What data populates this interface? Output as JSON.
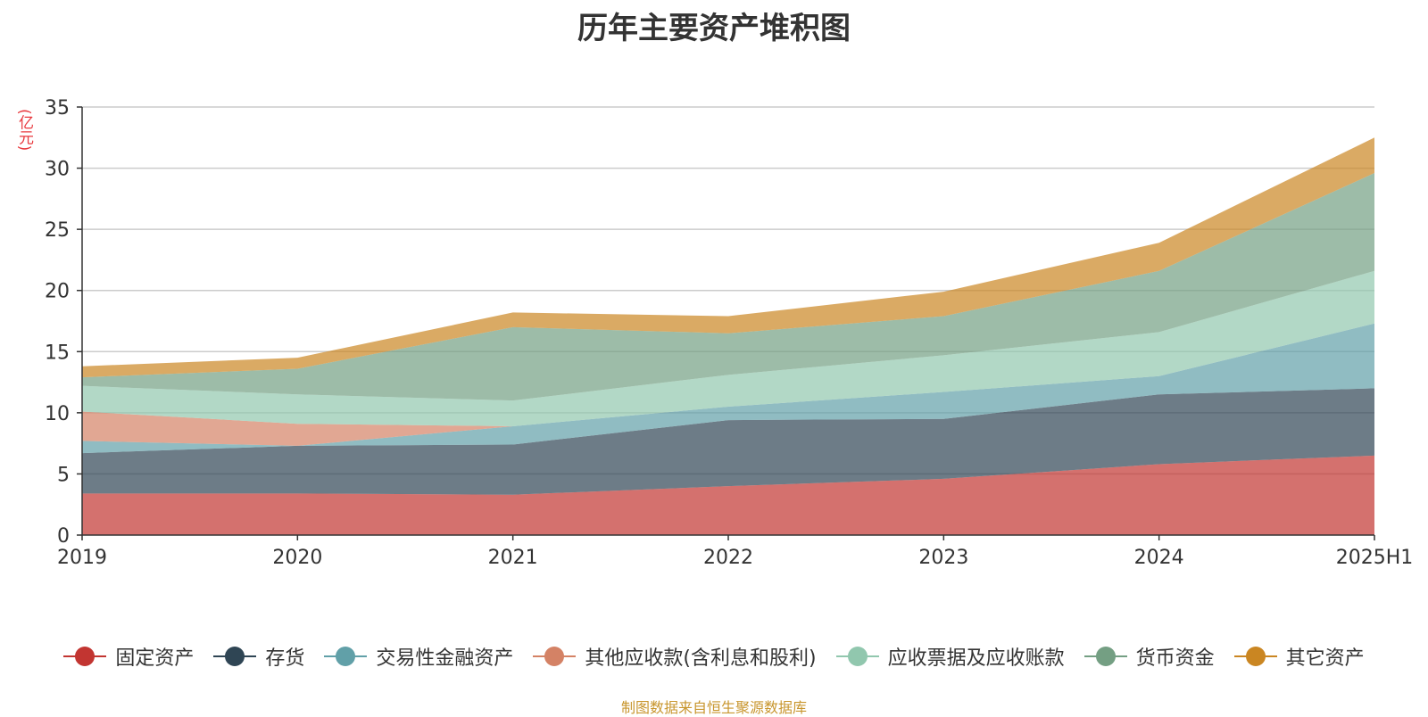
{
  "chart_data": {
    "type": "area",
    "stacked": true,
    "title": "历年主要资产堆积图",
    "unit_label": "(亿元)",
    "x": [
      "2019",
      "2020",
      "2021",
      "2022",
      "2023",
      "2024",
      "2025H1"
    ],
    "ylim": [
      0,
      35
    ],
    "yticks": [
      0,
      5,
      10,
      15,
      20,
      25,
      30,
      35
    ],
    "grid": true,
    "legend_position": "bottom",
    "series": [
      {
        "name": "固定资产",
        "color": "#c23531",
        "values": [
          3.4,
          3.4,
          3.3,
          4.0,
          4.6,
          5.8,
          6.5
        ]
      },
      {
        "name": "存货",
        "color": "#2f4554",
        "values": [
          3.3,
          3.9,
          4.1,
          5.4,
          4.9,
          5.7,
          5.5
        ]
      },
      {
        "name": "交易性金融资产",
        "color": "#61a0a8",
        "values": [
          1.0,
          0.0,
          1.5,
          1.1,
          2.2,
          1.5,
          5.3
        ]
      },
      {
        "name": "其他应收款(含利息和股利)",
        "color": "#d48265",
        "values": [
          2.4,
          1.8,
          0.0,
          0.0,
          0.0,
          0.0,
          0.0
        ]
      },
      {
        "name": "应收票据及应收账款",
        "color": "#91c7ae",
        "values": [
          2.1,
          2.4,
          2.1,
          2.6,
          3.0,
          3.6,
          4.3
        ]
      },
      {
        "name": "货币资金",
        "color": "#749f83",
        "values": [
          0.7,
          2.1,
          6.0,
          3.4,
          3.2,
          5.0,
          8.0
        ]
      },
      {
        "name": "其它资产",
        "color": "#ca8622",
        "values": [
          0.9,
          0.9,
          1.2,
          1.4,
          2.0,
          2.3,
          2.9
        ]
      }
    ],
    "source": "制图数据来自恒生聚源数据库"
  }
}
